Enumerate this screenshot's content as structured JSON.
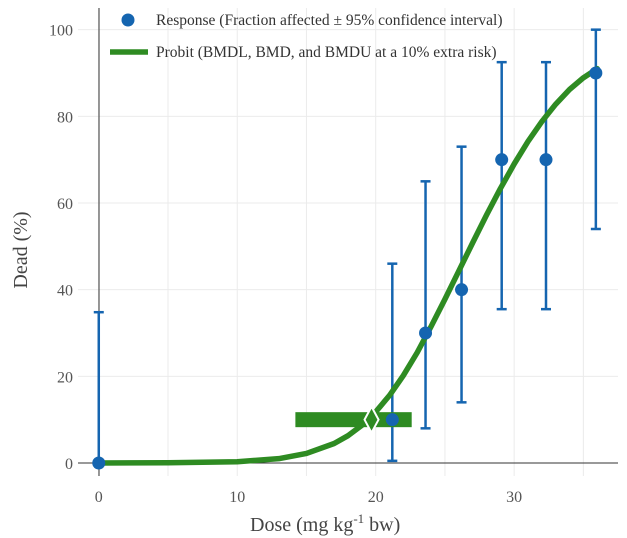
{
  "colors": {
    "response": "#1565b0",
    "probit": "#2e8b22",
    "grid": "#ebebeb",
    "axis": "#333333"
  },
  "chart_data": {
    "type": "scatter",
    "xlabel_main": "Dose (mg kg",
    "xlabel_sup": "-1",
    "xlabel_tail": " bw)",
    "ylabel": "Dead (%)",
    "xlim": [
      -1.5,
      37.5
    ],
    "ylim": [
      -3,
      105
    ],
    "x_ticks": [
      0,
      10,
      20,
      30
    ],
    "y_ticks": [
      0,
      20,
      40,
      60,
      80,
      100
    ],
    "grid": true,
    "legend_position": "top-left",
    "legend": [
      {
        "label": "Response (Fraction affected ± 95% confidence interval)",
        "marker": "dot"
      },
      {
        "label": "Probit (BMDL, BMD, and BMDU at a 10% extra risk)",
        "marker": "line"
      }
    ],
    "series": [
      {
        "name": "Response (Fraction affected ± 95% confidence interval)",
        "type": "scatter",
        "x": [
          0,
          21.2,
          23.6,
          26.2,
          29.1,
          32.3,
          35.9
        ],
        "y": [
          0,
          10,
          30,
          40,
          70,
          70,
          90
        ],
        "y_lower": [
          0,
          0.5,
          8,
          14,
          35.5,
          35.5,
          54
        ],
        "y_upper": [
          34.8,
          46,
          65,
          73,
          92.5,
          92.5,
          100
        ]
      },
      {
        "name": "Probit (BMDL, BMD, and BMDU at a 10% extra risk)",
        "type": "line",
        "x": [
          0,
          5,
          10,
          13,
          15,
          17,
          18,
          19,
          20,
          21,
          22,
          23,
          24,
          25,
          26,
          27,
          28,
          29,
          30,
          31,
          32,
          33,
          34,
          35,
          36
        ],
        "y": [
          0,
          0.05,
          0.3,
          1,
          2.2,
          4.5,
          6.3,
          8.7,
          11.8,
          15.6,
          20.2,
          25.5,
          31.5,
          37.8,
          44.3,
          50.8,
          57.2,
          63.3,
          69,
          74.2,
          78.8,
          82.8,
          86.2,
          88.9,
          91
        ]
      }
    ],
    "bmd": {
      "bmdl": 14.2,
      "bmd": 19.7,
      "bmdu": 22.6,
      "response_level": 10
    }
  }
}
